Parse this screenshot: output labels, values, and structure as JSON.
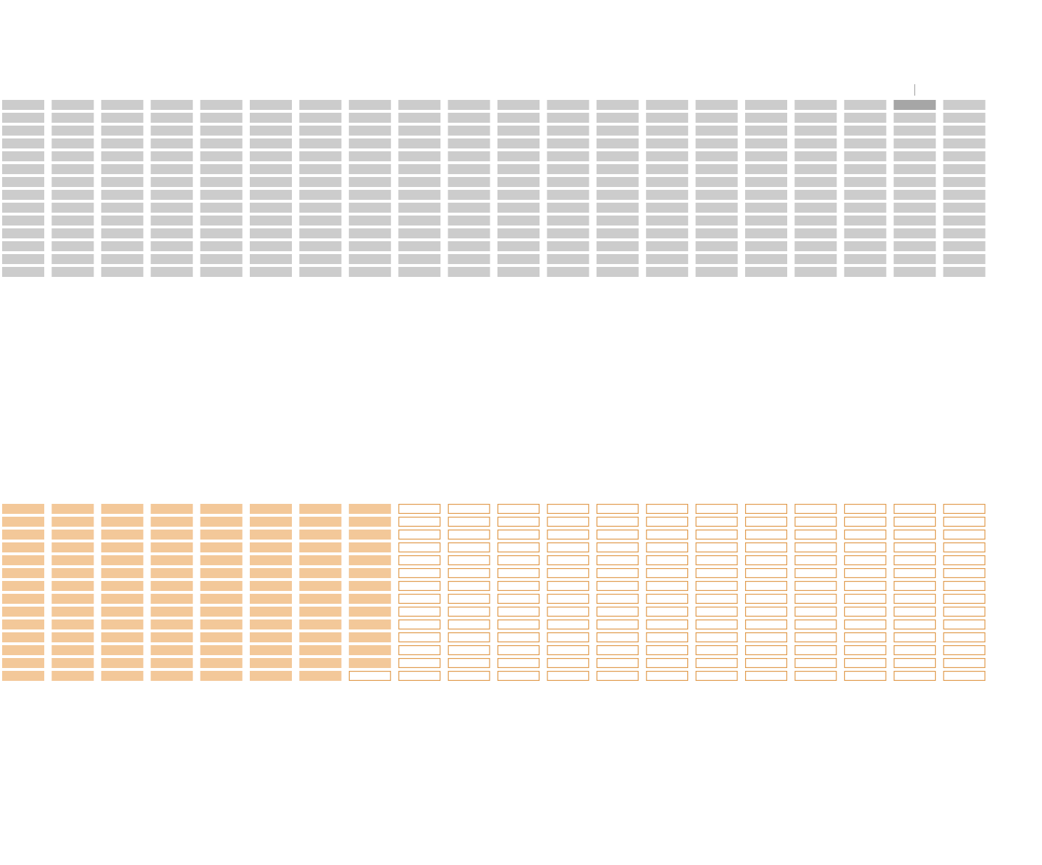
{
  "chart_data": [
    {
      "type": "unit-grid",
      "columns": 21,
      "rows_per_column": 14,
      "total_units": 280,
      "filled_units": 280,
      "highlighted_unit": {
        "column": 19,
        "row": 1
      },
      "marker_above_column": 19,
      "grid": false,
      "legend": "none",
      "colors": {
        "fill": "#cccccc",
        "highlight": "#a6a6a6",
        "marker": "#999999"
      }
    },
    {
      "type": "unit-grid",
      "columns": 21,
      "rows_per_column": 14,
      "total_units": 280,
      "filled_units": 111,
      "grid": false,
      "legend": "none",
      "colors": {
        "fill": "#f3c899",
        "outline": "#e09a4b",
        "empty": "#ffffff"
      }
    }
  ]
}
